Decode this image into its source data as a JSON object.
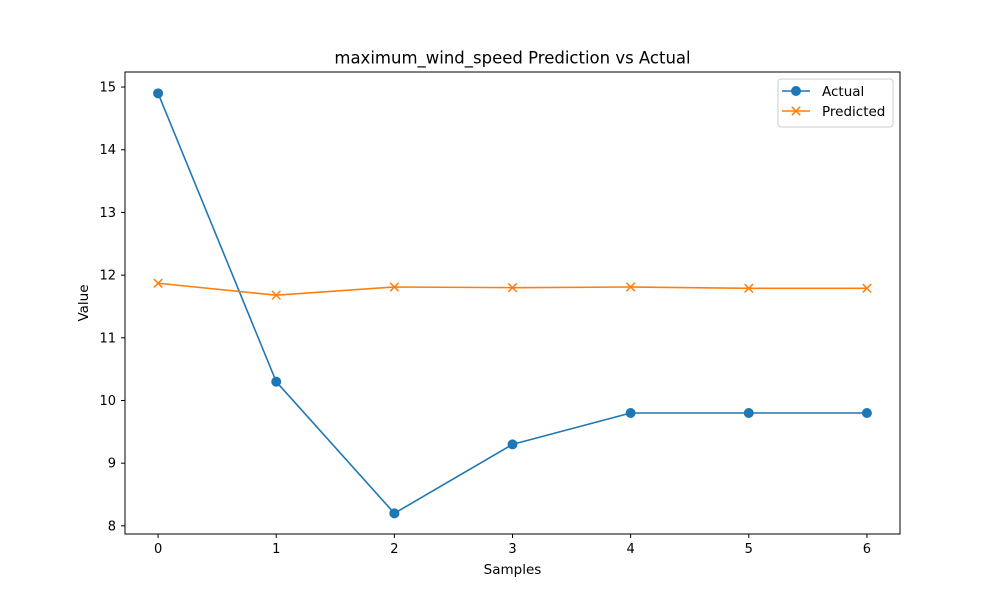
{
  "chart_data": {
    "type": "line",
    "title": "maximum_wind_speed Prediction vs Actual",
    "xlabel": "Samples",
    "ylabel": "Value",
    "x": [
      0,
      1,
      2,
      3,
      4,
      5,
      6
    ],
    "x_ticks": [
      0,
      1,
      2,
      3,
      4,
      5,
      6
    ],
    "y_ticks": [
      8,
      9,
      10,
      11,
      12,
      13,
      14,
      15
    ],
    "xlim": [
      -0.28,
      6.28
    ],
    "ylim": [
      7.87,
      15.24
    ],
    "grid": false,
    "legend_position": "top-right",
    "series": [
      {
        "name": "Actual",
        "color": "#1f77b4",
        "marker": "circle",
        "values": [
          14.9,
          10.3,
          8.2,
          9.3,
          9.8,
          9.8,
          9.8
        ]
      },
      {
        "name": "Predicted",
        "color": "#ff7f0e",
        "marker": "x",
        "values": [
          11.87,
          11.68,
          11.81,
          11.8,
          11.81,
          11.79,
          11.79
        ]
      }
    ]
  }
}
